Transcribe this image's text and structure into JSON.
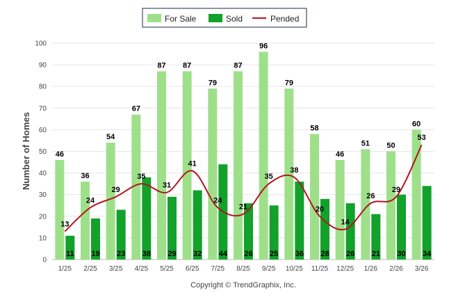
{
  "chart_data": {
    "type": "bar",
    "categories": [
      "1/25",
      "2/25",
      "3/25",
      "4/25",
      "5/25",
      "6/25",
      "7/25",
      "8/25",
      "9/25",
      "10/25",
      "11/25",
      "12/25",
      "1/26",
      "2/26",
      "3/26"
    ],
    "series": [
      {
        "name": "For Sale",
        "type": "bar",
        "color": "#9ee08a",
        "values": [
          46,
          36,
          54,
          67,
          87,
          87,
          79,
          87,
          96,
          79,
          58,
          46,
          51,
          50,
          60
        ]
      },
      {
        "name": "Sold",
        "type": "bar",
        "color": "#12a12a",
        "values": [
          11,
          19,
          23,
          38,
          29,
          32,
          44,
          26,
          25,
          36,
          28,
          26,
          21,
          30,
          34
        ]
      },
      {
        "name": "Pended",
        "type": "line",
        "color": "#b5141e",
        "values": [
          13,
          24,
          29,
          35,
          31,
          41,
          24,
          21,
          35,
          38,
          20,
          14,
          26,
          29,
          53
        ]
      }
    ],
    "ylabel": "Number of Homes",
    "xlabel": "",
    "ylim": [
      0,
      100
    ],
    "yticks": [
      0,
      10,
      20,
      30,
      40,
      50,
      60,
      70,
      80,
      90,
      100
    ],
    "grid": true,
    "legend_position": "top-center",
    "footer": "Copyright © TrendGraphix, Inc."
  }
}
